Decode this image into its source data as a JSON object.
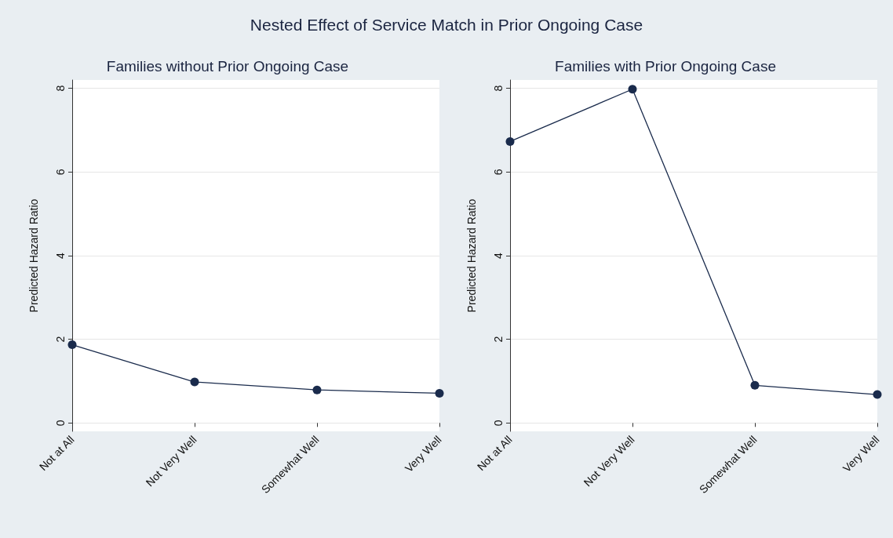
{
  "chart_data": [
    {
      "type": "line",
      "title": "Families without Prior Ongoing Case",
      "annotations": [
        "Nested Effect of Service Match in Prior Ongoing Case"
      ],
      "ylabel": "Predicted Hazard Ratio",
      "categories": [
        "Not at All",
        "Not Very Well",
        "Somewhat Well",
        "Very Well"
      ],
      "series": [
        {
          "color": "#1a2b4c",
          "values": [
            1.87,
            0.98,
            0.79,
            0.71
          ]
        }
      ],
      "ylim": [
        -0.2,
        8.2
      ],
      "yticks": [
        0,
        2,
        4,
        6,
        8
      ],
      "grid": "y",
      "marker": "circle",
      "line_style": "solid"
    },
    {
      "type": "line",
      "title": "Families with Prior Ongoing Case",
      "ylabel": "Predicted Hazard Ratio",
      "categories": [
        "Not at All",
        "Not Very Well",
        "Somewhat Well",
        "Very Well"
      ],
      "series": [
        {
          "color": "#1a2b4c",
          "values": [
            6.73,
            7.98,
            0.9,
            0.68
          ]
        }
      ],
      "ylim": [
        -0.2,
        8.2
      ],
      "yticks": [
        0,
        2,
        4,
        6,
        8
      ],
      "grid": "y",
      "marker": "circle",
      "line_style": "solid"
    }
  ]
}
